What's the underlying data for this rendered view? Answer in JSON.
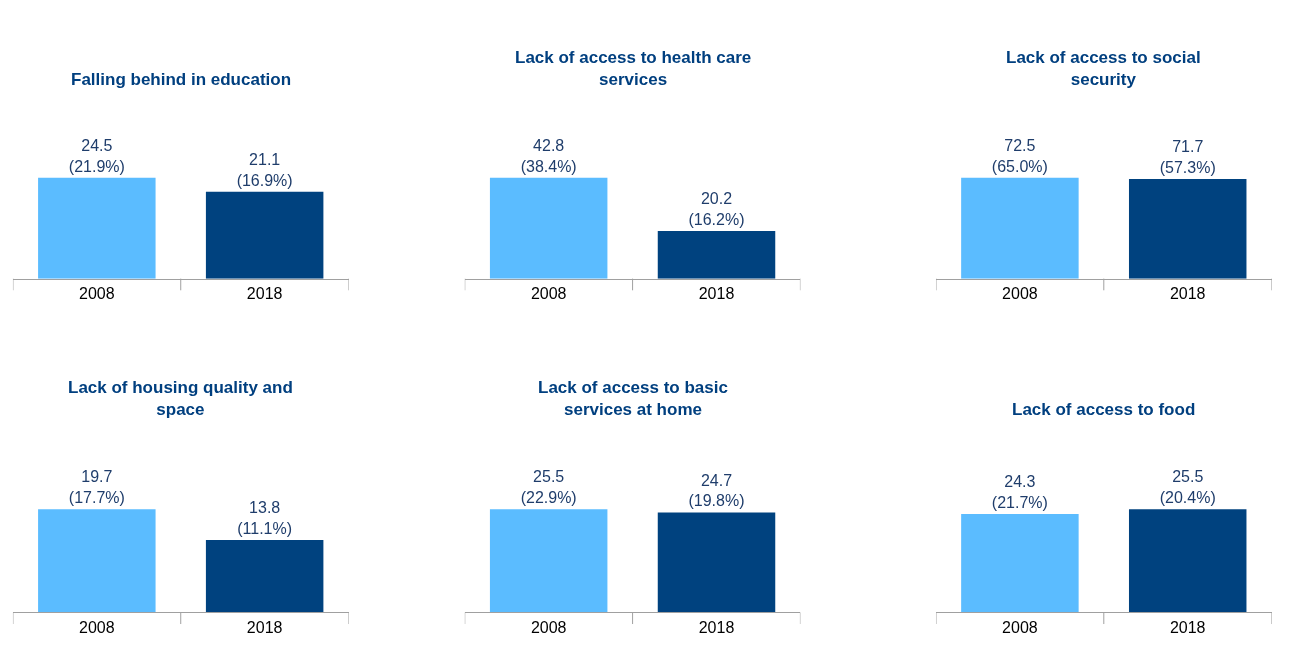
{
  "chart_data": [
    {
      "type": "bar",
      "title": "Falling behind in education",
      "categories": [
        "2008",
        "2018"
      ],
      "values": [
        24.5,
        21.1
      ],
      "colors": [
        "#5bbcff",
        "#00427f"
      ],
      "value_labels": [
        "24.5\n(21.9%)",
        "21.1\n(16.9%)"
      ]
    },
    {
      "type": "bar",
      "title": "Lack of access to health care services",
      "categories": [
        "2008",
        "2018"
      ],
      "values": [
        42.8,
        20.2
      ],
      "colors": [
        "#5bbcff",
        "#00427f"
      ],
      "value_labels": [
        "42.8\n(38.4%)",
        "20.2\n(16.2%)"
      ]
    },
    {
      "type": "bar",
      "title": "Lack of access to social security",
      "categories": [
        "2008",
        "2018"
      ],
      "values": [
        72.5,
        71.7
      ],
      "colors": [
        "#5bbcff",
        "#00427f"
      ],
      "value_labels": [
        "72.5\n(65.0%)",
        "71.7\n(57.3%)"
      ]
    },
    {
      "type": "bar",
      "title": "Lack of housing quality and space",
      "categories": [
        "2008",
        "2018"
      ],
      "values": [
        19.7,
        13.8
      ],
      "colors": [
        "#5bbcff",
        "#00427f"
      ],
      "value_labels": [
        "19.7\n(17.7%)",
        "13.8\n(11.1%)"
      ]
    },
    {
      "type": "bar",
      "title": "Lack of access to basic services at home",
      "categories": [
        "2008",
        "2018"
      ],
      "values": [
        25.5,
        24.7
      ],
      "colors": [
        "#5bbcff",
        "#00427f"
      ],
      "value_labels": [
        "25.5\n(22.9%)",
        "24.7\n(19.8%)"
      ]
    },
    {
      "type": "bar",
      "title": "Lack of access to food",
      "categories": [
        "2008",
        "2018"
      ],
      "values": [
        24.3,
        25.5
      ],
      "colors": [
        "#5bbcff",
        "#00427f"
      ],
      "value_labels": [
        "24.3\n(21.7%)",
        "25.5\n(20.4%)"
      ]
    }
  ]
}
